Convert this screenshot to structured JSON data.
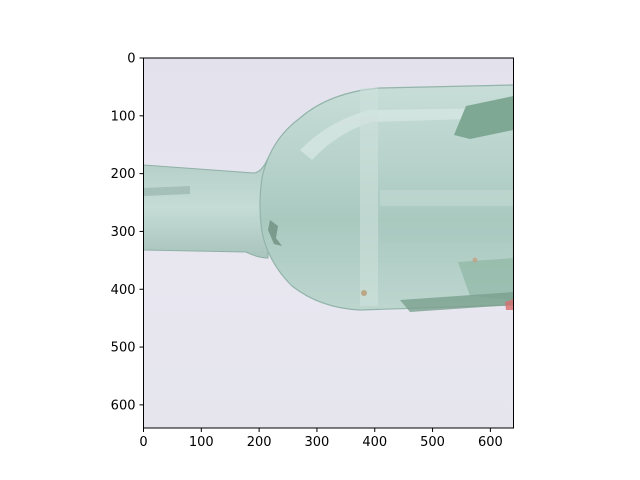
{
  "figure": {
    "image_description": "glass bottle neck and shoulder, lying on its side",
    "xlim": [
      0,
      640
    ],
    "ylim": [
      640,
      0
    ],
    "x_ticks": [
      "0",
      "100",
      "200",
      "300",
      "400",
      "500",
      "600"
    ],
    "y_ticks": [
      "0",
      "100",
      "200",
      "300",
      "400",
      "500",
      "600"
    ],
    "colors": {
      "background": "#e6e5ee",
      "glass": "#b9d3cc",
      "glass_dark": "#8fb4a8",
      "label_piece": "#7fa894"
    }
  }
}
